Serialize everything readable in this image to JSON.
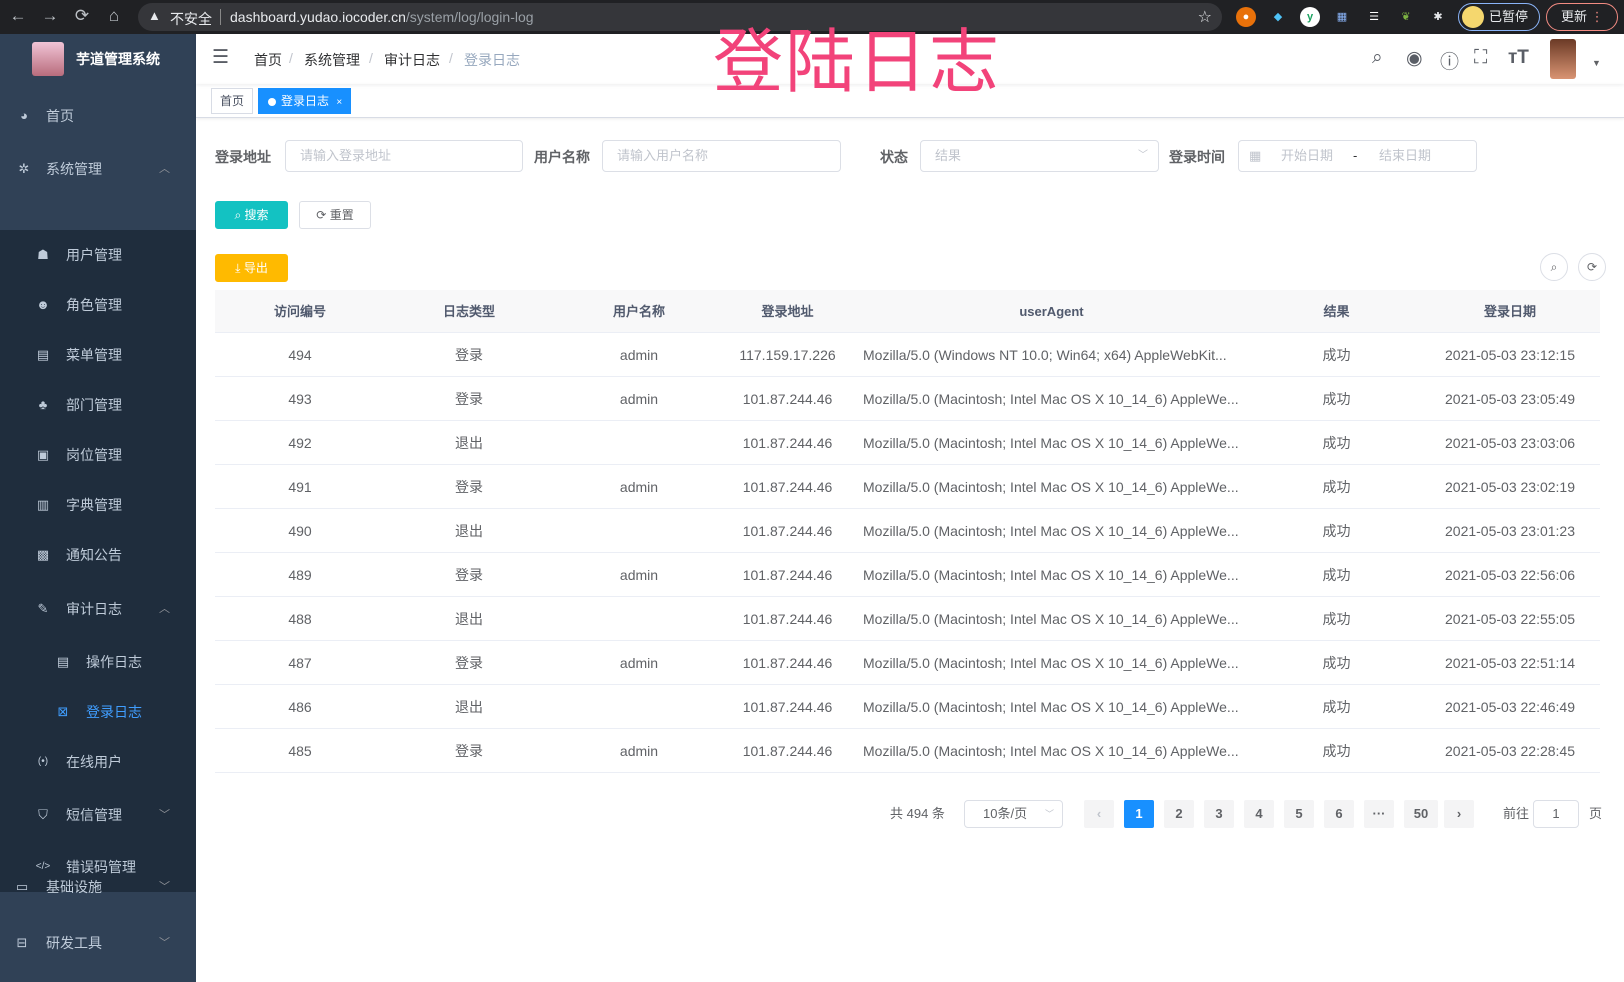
{
  "browser": {
    "back": "←",
    "forward": "→",
    "reload": "⟳",
    "home": "⌂",
    "insecure": "不安全",
    "url_host": "dashboard.yudao.iocoder.cn",
    "url_path": "/system/log/login-log",
    "paused": "已暂停",
    "update": "更新"
  },
  "overlay_title": "登陆日志",
  "sidebar": {
    "title": "芋道管理系统",
    "items": [
      {
        "label": "首页",
        "icon": "dashboard-icon"
      },
      {
        "label": "系统管理",
        "icon": "gear-icon",
        "expanded": true,
        "children": [
          {
            "label": "用户管理",
            "icon": "user-icon"
          },
          {
            "label": "角色管理",
            "icon": "peoples-icon"
          },
          {
            "label": "菜单管理",
            "icon": "tree-table-icon"
          },
          {
            "label": "部门管理",
            "icon": "tree-icon"
          },
          {
            "label": "岗位管理",
            "icon": "post-icon"
          },
          {
            "label": "字典管理",
            "icon": "dict-icon"
          },
          {
            "label": "通知公告",
            "icon": "message-icon"
          },
          {
            "label": "审计日志",
            "icon": "edit-icon",
            "expanded": true,
            "children": [
              {
                "label": "操作日志",
                "icon": "form-icon"
              },
              {
                "label": "登录日志",
                "icon": "logininfor-icon",
                "active": true
              }
            ]
          },
          {
            "label": "在线用户",
            "icon": "online-icon"
          },
          {
            "label": "短信管理",
            "icon": "shield-icon",
            "expanded": false
          },
          {
            "label": "错误码管理",
            "icon": "code-icon"
          }
        ]
      },
      {
        "label": "基础设施",
        "icon": "monitor-icon",
        "expanded": false
      },
      {
        "label": "研发工具",
        "icon": "tool-icon",
        "expanded": false
      }
    ]
  },
  "breadcrumb": [
    "首页",
    "系统管理",
    "审计日志",
    "登录日志"
  ],
  "tags": [
    {
      "label": "首页"
    },
    {
      "label": "登录日志",
      "close": "×"
    }
  ],
  "filters": {
    "address": {
      "label": "登录地址",
      "placeholder": "请输入登录地址"
    },
    "username": {
      "label": "用户名称",
      "placeholder": "请输入用户名称"
    },
    "status": {
      "label": "状态",
      "placeholder": "结果"
    },
    "time": {
      "label": "登录时间",
      "start": "开始日期",
      "sep": "-",
      "end": "结束日期"
    }
  },
  "buttons": {
    "search": "搜索",
    "reset": "重置",
    "export": "导出"
  },
  "colors": {
    "sidebar": "#304156",
    "submenu": "#1f2d3d",
    "primary": "#1890ff",
    "search": "#13c2c2",
    "export": "#ffba00",
    "overlay": "#f2437a"
  },
  "table": {
    "columns": [
      "访问编号",
      "日志类型",
      "用户名称",
      "登录地址",
      "userAgent",
      "结果",
      "登录日期"
    ],
    "rows": [
      [
        "494",
        "登录",
        "admin",
        "117.159.17.226",
        "Mozilla/5.0 (Windows NT 10.0; Win64; x64) AppleWebKit...",
        "成功",
        "2021-05-03 23:12:15"
      ],
      [
        "493",
        "登录",
        "admin",
        "101.87.244.46",
        "Mozilla/5.0 (Macintosh; Intel Mac OS X 10_14_6) AppleWe...",
        "成功",
        "2021-05-03 23:05:49"
      ],
      [
        "492",
        "退出",
        "",
        "101.87.244.46",
        "Mozilla/5.0 (Macintosh; Intel Mac OS X 10_14_6) AppleWe...",
        "成功",
        "2021-05-03 23:03:06"
      ],
      [
        "491",
        "登录",
        "admin",
        "101.87.244.46",
        "Mozilla/5.0 (Macintosh; Intel Mac OS X 10_14_6) AppleWe...",
        "成功",
        "2021-05-03 23:02:19"
      ],
      [
        "490",
        "退出",
        "",
        "101.87.244.46",
        "Mozilla/5.0 (Macintosh; Intel Mac OS X 10_14_6) AppleWe...",
        "成功",
        "2021-05-03 23:01:23"
      ],
      [
        "489",
        "登录",
        "admin",
        "101.87.244.46",
        "Mozilla/5.0 (Macintosh; Intel Mac OS X 10_14_6) AppleWe...",
        "成功",
        "2021-05-03 22:56:06"
      ],
      [
        "488",
        "退出",
        "",
        "101.87.244.46",
        "Mozilla/5.0 (Macintosh; Intel Mac OS X 10_14_6) AppleWe...",
        "成功",
        "2021-05-03 22:55:05"
      ],
      [
        "487",
        "登录",
        "admin",
        "101.87.244.46",
        "Mozilla/5.0 (Macintosh; Intel Mac OS X 10_14_6) AppleWe...",
        "成功",
        "2021-05-03 22:51:14"
      ],
      [
        "486",
        "退出",
        "",
        "101.87.244.46",
        "Mozilla/5.0 (Macintosh; Intel Mac OS X 10_14_6) AppleWe...",
        "成功",
        "2021-05-03 22:46:49"
      ],
      [
        "485",
        "登录",
        "admin",
        "101.87.244.46",
        "Mozilla/5.0 (Macintosh; Intel Mac OS X 10_14_6) AppleWe...",
        "成功",
        "2021-05-03 22:28:45"
      ]
    ]
  },
  "pagination": {
    "total": "共 494 条",
    "page_size": "10条/页",
    "pages": [
      "1",
      "2",
      "3",
      "4",
      "5",
      "6",
      "···",
      "50"
    ],
    "current": "1",
    "prev": "‹",
    "next": "›",
    "goto_label": "前往",
    "goto_value": "1",
    "goto_suffix": "页"
  }
}
